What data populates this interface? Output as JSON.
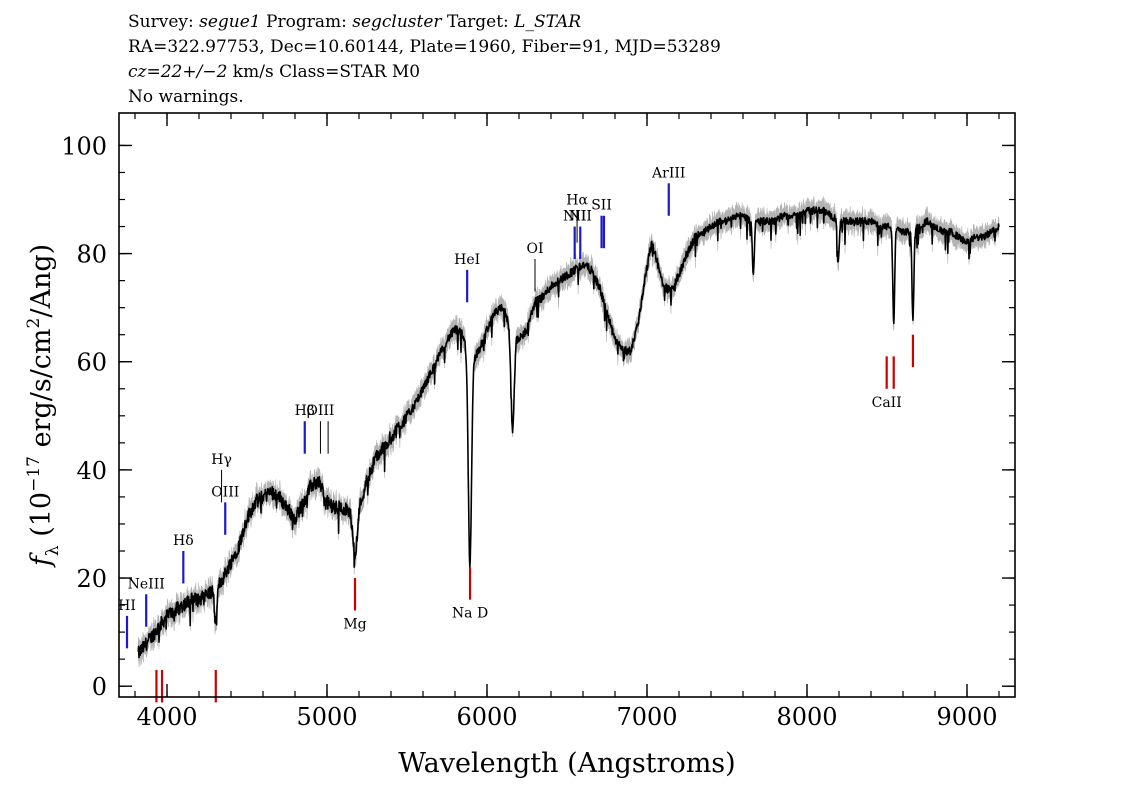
{
  "header": {
    "line1": {
      "survey_label": "Survey:",
      "survey": "segue1",
      "program_label": "Program:",
      "program": "segcluster",
      "target_label": "Target:",
      "target": "L_STAR"
    },
    "line2": "RA=322.97753, Dec=10.60144, Plate=1960, Fiber=91, MJD=53289",
    "line3": {
      "cz": "cz=22+/−2",
      "rest": " km/s Class=STAR M0"
    },
    "line4": "No warnings."
  },
  "chart_data": {
    "type": "line",
    "xlabel": "Wavelength (Angstroms)",
    "ylabel": "f_λ (10^-17 erg/s/cm^2/Ang)",
    "ylabel_parts": {
      "f": "f",
      "sub": "λ",
      "pre": " (10",
      "exp1": "−17",
      "mid": " erg/s/cm",
      "exp2": "2",
      "post": "/Ang)"
    },
    "xlim": [
      3700,
      9300
    ],
    "ylim": [
      -2,
      106
    ],
    "x_ticks": [
      4000,
      5000,
      6000,
      7000,
      8000,
      9000
    ],
    "x_tick_labels": [
      "4000",
      "5000",
      "6000",
      "7000",
      "8000",
      "9000"
    ],
    "y_ticks": [
      0,
      20,
      40,
      60,
      80,
      100
    ],
    "y_tick_labels": [
      "0",
      "20",
      "40",
      "60",
      "80",
      "100"
    ],
    "colors": {
      "flux": "#000000",
      "error": "#b3b3b3",
      "emission": "#1a1acc",
      "absorption": "#cc0000"
    },
    "continuum": [
      [
        3820,
        6
      ],
      [
        3850,
        7
      ],
      [
        3900,
        9
      ],
      [
        3950,
        11
      ],
      [
        4000,
        13
      ],
      [
        4050,
        14
      ],
      [
        4100,
        15
      ],
      [
        4150,
        16
      ],
      [
        4200,
        16
      ],
      [
        4250,
        17
      ],
      [
        4300,
        18
      ],
      [
        4350,
        20
      ],
      [
        4400,
        23
      ],
      [
        4450,
        26
      ],
      [
        4500,
        31
      ],
      [
        4550,
        34
      ],
      [
        4600,
        35
      ],
      [
        4650,
        36
      ],
      [
        4700,
        35
      ],
      [
        4750,
        33
      ],
      [
        4800,
        31
      ],
      [
        4850,
        34
      ],
      [
        4900,
        37
      ],
      [
        4950,
        38
      ],
      [
        5000,
        34
      ],
      [
        5050,
        33
      ],
      [
        5100,
        33
      ],
      [
        5150,
        32
      ],
      [
        5200,
        33
      ],
      [
        5250,
        38
      ],
      [
        5300,
        42
      ],
      [
        5350,
        44
      ],
      [
        5400,
        46
      ],
      [
        5450,
        48
      ],
      [
        5500,
        50
      ],
      [
        5550,
        52
      ],
      [
        5600,
        55
      ],
      [
        5650,
        58
      ],
      [
        5700,
        61
      ],
      [
        5750,
        64
      ],
      [
        5800,
        66
      ],
      [
        5850,
        65
      ],
      [
        5900,
        60
      ],
      [
        5950,
        62
      ],
      [
        6000,
        66
      ],
      [
        6050,
        69
      ],
      [
        6100,
        70
      ],
      [
        6150,
        66
      ],
      [
        6200,
        64
      ],
      [
        6250,
        66
      ],
      [
        6300,
        71
      ],
      [
        6350,
        72
      ],
      [
        6400,
        74
      ],
      [
        6450,
        75
      ],
      [
        6500,
        76
      ],
      [
        6550,
        77
      ],
      [
        6600,
        78
      ],
      [
        6650,
        77
      ],
      [
        6700,
        74
      ],
      [
        6750,
        69
      ],
      [
        6800,
        64
      ],
      [
        6850,
        62
      ],
      [
        6900,
        62
      ],
      [
        6950,
        68
      ],
      [
        7000,
        78
      ],
      [
        7030,
        82
      ],
      [
        7060,
        79
      ],
      [
        7100,
        74
      ],
      [
        7150,
        73
      ],
      [
        7200,
        76
      ],
      [
        7250,
        80
      ],
      [
        7300,
        83
      ],
      [
        7350,
        84
      ],
      [
        7400,
        85
      ],
      [
        7450,
        86
      ],
      [
        7500,
        86
      ],
      [
        7550,
        87
      ],
      [
        7600,
        87
      ],
      [
        7650,
        86
      ],
      [
        7700,
        86
      ],
      [
        7750,
        86
      ],
      [
        7800,
        86
      ],
      [
        7850,
        87
      ],
      [
        7900,
        87
      ],
      [
        7950,
        87
      ],
      [
        8000,
        88
      ],
      [
        8050,
        88
      ],
      [
        8100,
        88
      ],
      [
        8150,
        87
      ],
      [
        8200,
        86
      ],
      [
        8250,
        86
      ],
      [
        8300,
        86
      ],
      [
        8350,
        86
      ],
      [
        8400,
        86
      ],
      [
        8450,
        85
      ],
      [
        8500,
        85
      ],
      [
        8550,
        85
      ],
      [
        8600,
        84
      ],
      [
        8650,
        84
      ],
      [
        8700,
        85
      ],
      [
        8750,
        86
      ],
      [
        8800,
        85
      ],
      [
        8850,
        84
      ],
      [
        8900,
        84
      ],
      [
        8950,
        83
      ],
      [
        9000,
        82
      ],
      [
        9050,
        83
      ],
      [
        9100,
        83
      ],
      [
        9150,
        84
      ],
      [
        9200,
        85
      ]
    ],
    "absorption_features": [
      {
        "wave": 4305,
        "depth": 7,
        "width": 8
      },
      {
        "wave": 5175,
        "depth": 8,
        "width": 12
      },
      {
        "wave": 5893,
        "depth": 38,
        "width": 10
      },
      {
        "wave": 6160,
        "depth": 18,
        "width": 10
      },
      {
        "wave": 7665,
        "depth": 10,
        "width": 6
      },
      {
        "wave": 8195,
        "depth": 8,
        "width": 6
      },
      {
        "wave": 8542,
        "depth": 18,
        "width": 6
      },
      {
        "wave": 8662,
        "depth": 16,
        "width": 6
      }
    ],
    "emission_lines": [
      {
        "name": "HI",
        "wave": 3750,
        "y1": 7,
        "y2": 13
      },
      {
        "name": "NeIII",
        "wave": 3870,
        "y1": 11,
        "y2": 17
      },
      {
        "name": "Hδ",
        "wave": 4102,
        "y1": 19,
        "y2": 25
      },
      {
        "name": "Hγ",
        "wave": 4341,
        "y1": 34,
        "y2": 40,
        "thin": true
      },
      {
        "name": "OIII",
        "wave": 4364,
        "y1": 28,
        "y2": 34
      },
      {
        "name": "Hβ",
        "wave": 4861,
        "y1": 43,
        "y2": 49
      },
      {
        "name": "OIII",
        "wave": 4959,
        "y1": 43,
        "y2": 49,
        "thin": true
      },
      {
        "name": "",
        "wave": 5007,
        "y1": 43,
        "y2": 49,
        "thin": true
      },
      {
        "name": "HeI",
        "wave": 5876,
        "y1": 71,
        "y2": 77
      },
      {
        "name": "OI",
        "wave": 6300,
        "y1": 73,
        "y2": 79,
        "thin": true
      },
      {
        "name": "NII",
        "wave": 6548,
        "y1": 79,
        "y2": 85
      },
      {
        "name": "Hα",
        "wave": 6563,
        "y1": 82,
        "y2": 88,
        "thin": true
      },
      {
        "name": "NII",
        "wave": 6583,
        "y1": 79,
        "y2": 85
      },
      {
        "name": "SII",
        "wave": 6716,
        "y1": 81,
        "y2": 87
      },
      {
        "name": "",
        "wave": 6731,
        "y1": 81,
        "y2": 87
      },
      {
        "name": "ArIII",
        "wave": 7136,
        "y1": 87,
        "y2": 93
      }
    ],
    "absorption_lines": [
      {
        "name": "",
        "wave": 3934,
        "y1": -3,
        "y2": 3
      },
      {
        "name": "",
        "wave": 3969,
        "y1": -3,
        "y2": 3
      },
      {
        "name": "",
        "wave": 4305,
        "y1": -3,
        "y2": 3
      },
      {
        "name": "Mg",
        "wave": 5175,
        "y1": 14,
        "y2": 20
      },
      {
        "name": "Na D",
        "wave": 5894,
        "y1": 16,
        "y2": 22
      },
      {
        "name": "CaII",
        "wave": 8498,
        "y1": 55,
        "y2": 61
      },
      {
        "name": "",
        "wave": 8542,
        "y1": 55,
        "y2": 61
      },
      {
        "name": "",
        "wave": 8662,
        "y1": 59,
        "y2": 65
      }
    ]
  }
}
